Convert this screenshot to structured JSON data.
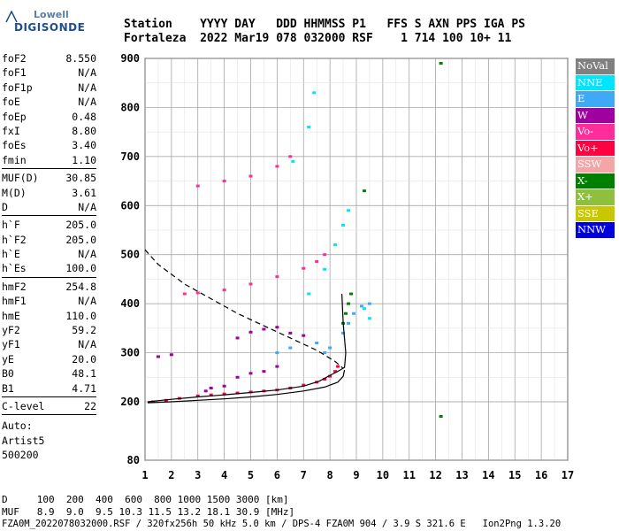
{
  "logo": {
    "line1": "Lowell",
    "line2": "DIGISONDE"
  },
  "header": {
    "labels": [
      "Station",
      "YYYY DAY",
      "DDD HHMMSS P1",
      "FFS S AXN PPS IGA PS"
    ],
    "values": [
      "Fortaleza",
      "2022 Mar19",
      "078 032000 RSF",
      "1 714 100 10+ 11"
    ]
  },
  "params": {
    "group1": [
      {
        "label": "foF2",
        "value": "8.550"
      },
      {
        "label": "foF1",
        "value": "N/A"
      },
      {
        "label": "foF1p",
        "value": "N/A"
      },
      {
        "label": "foE",
        "value": "N/A"
      },
      {
        "label": "foEp",
        "value": "0.48"
      },
      {
        "label": "fxI",
        "value": "8.80"
      },
      {
        "label": "foEs",
        "value": "3.40"
      },
      {
        "label": "fmin",
        "value": "1.10"
      }
    ],
    "group2": [
      {
        "label": "MUF(D)",
        "value": "30.85"
      },
      {
        "label": "M(D)",
        "value": "3.61"
      },
      {
        "label": "D",
        "value": "N/A"
      }
    ],
    "group3": [
      {
        "label": "h`F",
        "value": "205.0"
      },
      {
        "label": "h`F2",
        "value": "205.0"
      },
      {
        "label": "h`E",
        "value": "N/A"
      },
      {
        "label": "h`Es",
        "value": "100.0"
      }
    ],
    "group4": [
      {
        "label": "hmF2",
        "value": "254.8"
      },
      {
        "label": "hmF1",
        "value": "N/A"
      },
      {
        "label": "hmE",
        "value": "110.0"
      },
      {
        "label": "yF2",
        "value": "59.2"
      },
      {
        "label": "yF1",
        "value": "N/A"
      },
      {
        "label": "yE",
        "value": "20.0"
      },
      {
        "label": "B0",
        "value": "48.1"
      },
      {
        "label": "B1",
        "value": "4.71"
      }
    ],
    "group5": [
      {
        "label": "C-level",
        "value": "22"
      }
    ],
    "auto": [
      "Auto:",
      "Artist5",
      "500200"
    ]
  },
  "legend": [
    {
      "label": "NoVal",
      "color": "#808080"
    },
    {
      "label": "NNE",
      "color": "#00e5ff"
    },
    {
      "label": "E",
      "color": "#3fa9f5"
    },
    {
      "label": "W",
      "color": "#a000a0"
    },
    {
      "label": "Vo-",
      "color": "#ff2d9a"
    },
    {
      "label": "Vo+",
      "color": "#ff0040"
    },
    {
      "label": "SSW",
      "color": "#f4a6a6"
    },
    {
      "label": "X-",
      "color": "#008000"
    },
    {
      "label": "X+",
      "color": "#8fbf3f"
    },
    {
      "label": "SSE",
      "color": "#c8c800"
    },
    {
      "label": "NNW",
      "color": "#0000dd"
    }
  ],
  "footer": {
    "line1": "D     100  200  400  600  800 1000 1500 3000 [km]",
    "line2": "MUF   8.9  9.0  9.5 10.3 11.5 13.2 18.1 30.9 [MHz]",
    "line3": "FZA0M_2022078032000.RSF / 320fx256h 50 kHz 5.0 km / DPS-4 FZA0M 904 / 3.9 S 321.6 E   Ion2Png 1.3.20"
  },
  "chart_data": {
    "type": "scatter",
    "title": "",
    "xlabel": "",
    "ylabel": "",
    "xlim": [
      1,
      17
    ],
    "ylim": [
      80,
      900
    ],
    "x_ticks": [
      1,
      2,
      3,
      4,
      5,
      6,
      7,
      8,
      9,
      10,
      11,
      12,
      13,
      14,
      15,
      16,
      17
    ],
    "y_ticks": [
      80,
      200,
      300,
      400,
      500,
      600,
      700,
      800,
      900
    ],
    "grid": true,
    "legend_placement": "right",
    "series": [
      {
        "name": "Vo+",
        "points": [
          [
            1.3,
            200
          ],
          [
            1.8,
            203
          ],
          [
            2.3,
            207
          ],
          [
            3,
            212
          ],
          [
            3.5,
            214
          ],
          [
            4,
            216
          ],
          [
            4.5,
            218
          ],
          [
            5,
            220
          ],
          [
            5.5,
            222
          ],
          [
            6,
            224
          ],
          [
            6.5,
            228
          ],
          [
            7,
            234
          ],
          [
            7.5,
            240
          ],
          [
            7.8,
            246
          ],
          [
            8,
            252
          ],
          [
            8.2,
            262
          ],
          [
            8.3,
            272
          ]
        ]
      },
      {
        "name": "W",
        "points": [
          [
            3.3,
            222
          ],
          [
            3.5,
            228
          ],
          [
            4,
            232
          ],
          [
            4.5,
            250
          ],
          [
            5,
            258
          ],
          [
            5.5,
            262
          ],
          [
            6,
            272
          ],
          [
            6.5,
            340
          ],
          [
            7,
            335
          ],
          [
            4.5,
            330
          ],
          [
            5,
            342
          ],
          [
            5.5,
            348
          ],
          [
            6,
            352
          ],
          [
            1.5,
            292
          ],
          [
            2,
            296
          ]
        ]
      },
      {
        "name": "E",
        "points": [
          [
            7.8,
            300
          ],
          [
            8,
            310
          ],
          [
            8.5,
            340
          ],
          [
            8.7,
            360
          ],
          [
            8.9,
            380
          ],
          [
            9.2,
            395
          ],
          [
            9.5,
            400
          ],
          [
            6,
            300
          ],
          [
            6.5,
            310
          ],
          [
            7.5,
            320
          ]
        ]
      },
      {
        "name": "NNE",
        "points": [
          [
            7.2,
            420
          ],
          [
            7.8,
            470
          ],
          [
            8.2,
            520
          ],
          [
            8.5,
            560
          ],
          [
            8.7,
            590
          ],
          [
            6.6,
            690
          ],
          [
            7.2,
            760
          ],
          [
            7.4,
            830
          ],
          [
            9.3,
            390
          ],
          [
            9.5,
            370
          ]
        ]
      },
      {
        "name": "X-",
        "points": [
          [
            8.5,
            360
          ],
          [
            8.6,
            380
          ],
          [
            8.7,
            400
          ],
          [
            8.8,
            420
          ],
          [
            9.3,
            630
          ],
          [
            12.2,
            890
          ],
          [
            12.2,
            170
          ]
        ]
      },
      {
        "name": "Vo-",
        "points": [
          [
            2.5,
            420
          ],
          [
            3,
            422
          ],
          [
            4,
            428
          ],
          [
            5,
            440
          ],
          [
            6,
            455
          ],
          [
            7,
            472
          ],
          [
            7.5,
            486
          ],
          [
            7.8,
            500
          ],
          [
            3,
            640
          ],
          [
            4,
            650
          ],
          [
            5,
            660
          ],
          [
            6,
            680
          ],
          [
            6.5,
            700
          ]
        ]
      }
    ],
    "traces": [
      {
        "name": "solid-profile",
        "points": [
          [
            1.1,
            200
          ],
          [
            2,
            205
          ],
          [
            3,
            210
          ],
          [
            4,
            214
          ],
          [
            5,
            219
          ],
          [
            6,
            224
          ],
          [
            7,
            232
          ],
          [
            7.6,
            242
          ],
          [
            8,
            254
          ],
          [
            8.3,
            262
          ],
          [
            8.55,
            270
          ],
          [
            8.6,
            300
          ],
          [
            8.5,
            360
          ],
          [
            8.45,
            420
          ]
        ]
      },
      {
        "name": "solid-lower",
        "points": [
          [
            1.1,
            198
          ],
          [
            2,
            200
          ],
          [
            3,
            203
          ],
          [
            4,
            206
          ],
          [
            5,
            210
          ],
          [
            6,
            215
          ],
          [
            7,
            222
          ],
          [
            7.8,
            230
          ],
          [
            8.3,
            240
          ],
          [
            8.5,
            252
          ],
          [
            8.55,
            265
          ]
        ]
      },
      {
        "name": "dashed-profile",
        "points": [
          [
            1,
            510
          ],
          [
            1.5,
            480
          ],
          [
            2.5,
            440
          ],
          [
            3.5,
            410
          ],
          [
            4.5,
            380
          ],
          [
            5.5,
            355
          ],
          [
            6.5,
            330
          ],
          [
            7.5,
            305
          ],
          [
            8.2,
            282
          ],
          [
            8.5,
            268
          ]
        ]
      }
    ]
  }
}
